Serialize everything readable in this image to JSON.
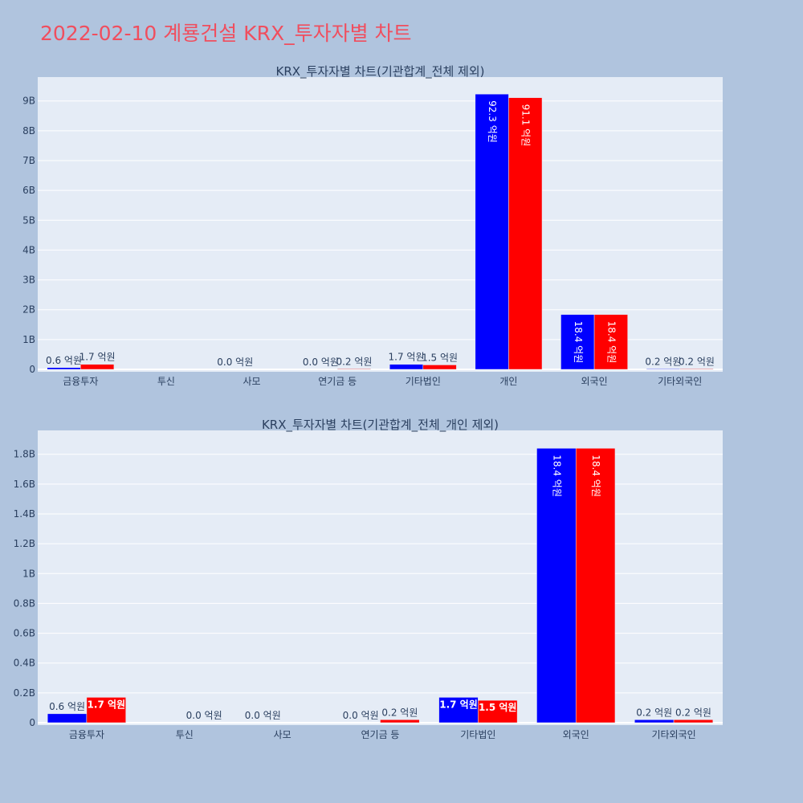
{
  "page_title": "2022-02-10 계룡건설 KRX_투자자별 차트",
  "colors": {
    "buy": "#0000ff",
    "sell": "#ff0000",
    "plot_bg": "#e5ecf6",
    "text": "#2a3f5f"
  },
  "chart_data": [
    {
      "type": "bar",
      "title": "KRX_투자자별 차트(기관합계_전체 제외)",
      "categories": [
        "금융투자",
        "투신",
        "사모",
        "연기금 등",
        "기타법인",
        "개인",
        "외국인",
        "기타외국인"
      ],
      "series": [
        {
          "values": [
            0.06,
            0,
            0,
            0,
            0.17,
            9.23,
            1.84,
            0.02
          ],
          "labels": [
            "0.6 억원",
            "",
            "0.0 억원",
            "0.0 억원",
            "1.7 억원",
            "92.3 억원",
            "18.4 억원",
            "0.2 억원"
          ]
        },
        {
          "values": [
            0.17,
            0,
            0,
            0.02,
            0.15,
            9.11,
            1.84,
            0.02
          ],
          "labels": [
            "1.7 억원",
            "",
            "",
            "0.2 억원",
            "1.5 억원",
            "91.1 억원",
            "18.4 억원",
            "0.2 억원"
          ]
        }
      ],
      "y_ticks": [
        0,
        1,
        2,
        3,
        4,
        5,
        6,
        7,
        8,
        9
      ],
      "y_tick_labels": [
        "0",
        "1B",
        "2B",
        "3B",
        "4B",
        "5B",
        "6B",
        "7B",
        "8B",
        "9B"
      ],
      "ylim": [
        0,
        9.8
      ],
      "grid": true
    },
    {
      "type": "bar",
      "title": "KRX_투자자별 차트(기관합계_전체_개인 제외)",
      "categories": [
        "금융투자",
        "투신",
        "사모",
        "연기금 등",
        "기타법인",
        "외국인",
        "기타외국인"
      ],
      "series": [
        {
          "values": [
            0.06,
            0,
            0,
            0,
            0.17,
            1.84,
            0.02
          ],
          "labels": [
            "0.6 억원",
            "",
            "0.0 억원",
            "0.0 억원",
            "1.7 억원",
            "18.4 억원",
            "0.2 억원"
          ]
        },
        {
          "values": [
            0.17,
            0,
            0,
            0.02,
            0.15,
            1.84,
            0.02
          ],
          "labels": [
            "1.7 억원",
            "0.0 억원",
            "",
            "0.2 억원",
            "1.5 억원",
            "18.4 억원",
            "0.2 억원"
          ]
        }
      ],
      "y_ticks": [
        0,
        0.2,
        0.4,
        0.6,
        0.8,
        1,
        1.2,
        1.4,
        1.6,
        1.8
      ],
      "y_tick_labels": [
        "0",
        "0.2B",
        "0.4B",
        "0.6B",
        "0.8B",
        "1B",
        "1.2B",
        "1.4B",
        "1.6B",
        "1.8B"
      ],
      "ylim": [
        0,
        1.96
      ],
      "grid": true
    }
  ]
}
